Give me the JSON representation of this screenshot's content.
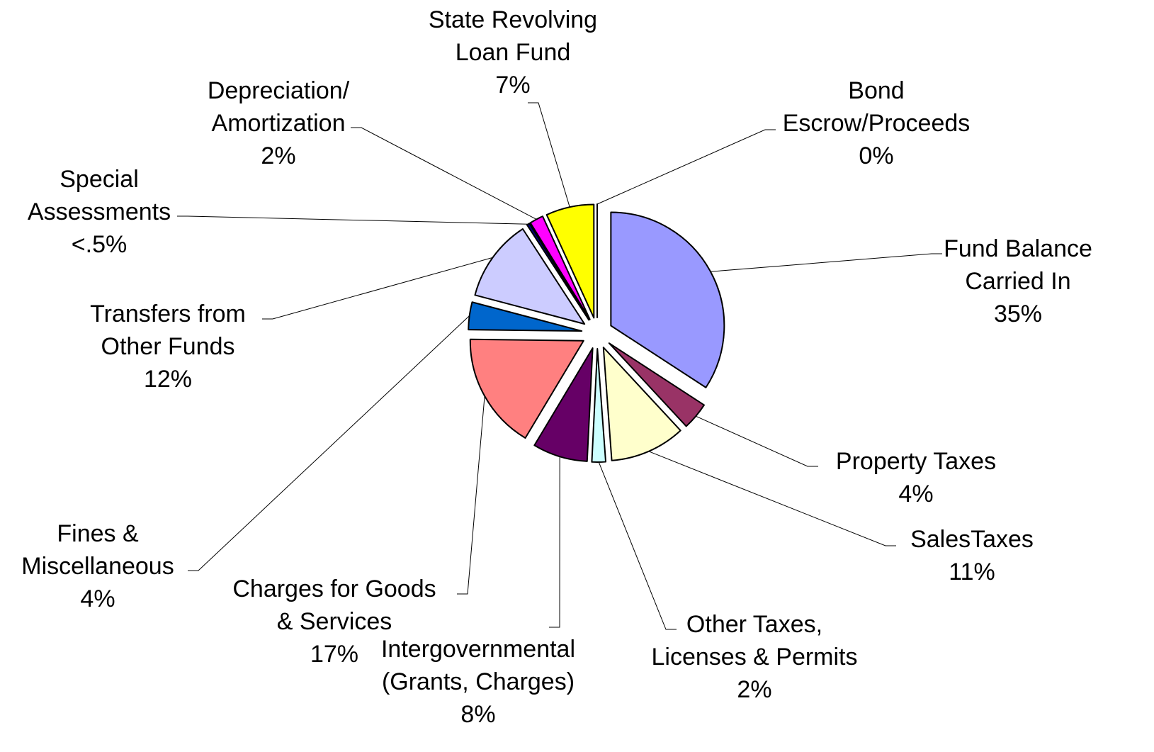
{
  "chart_data": {
    "type": "pie",
    "categories": [
      "Fund Balance\nCarried In",
      "Property Taxes",
      "SalesTaxes",
      "Other Taxes,\nLicenses & Permits",
      "Intergovernmental\n(Grants, Charges)",
      "Charges for Goods\n& Services",
      "Fines &\nMiscellaneous",
      "Transfers from\nOther Funds",
      "Special\nAssessments",
      "Depreciation/\nAmortization",
      "State Revolving\nLoan Fund",
      "Bond\nEscrow/Proceeds"
    ],
    "values": [
      35,
      4,
      11,
      2,
      8,
      17,
      4,
      12,
      0.4,
      2,
      7,
      0
    ],
    "value_labels": [
      "35%",
      "4%",
      "11%",
      "2%",
      "8%",
      "17%",
      "4%",
      "12%",
      "<.5%",
      "2%",
      "7%",
      "0%"
    ],
    "colors": [
      "#9999ff",
      "#993366",
      "#ffffcc",
      "#ccffff",
      "#660066",
      "#ff8080",
      "#0066cc",
      "#ccccff",
      "#000080",
      "#ff00ff",
      "#ffff00",
      "#ffffff"
    ]
  }
}
